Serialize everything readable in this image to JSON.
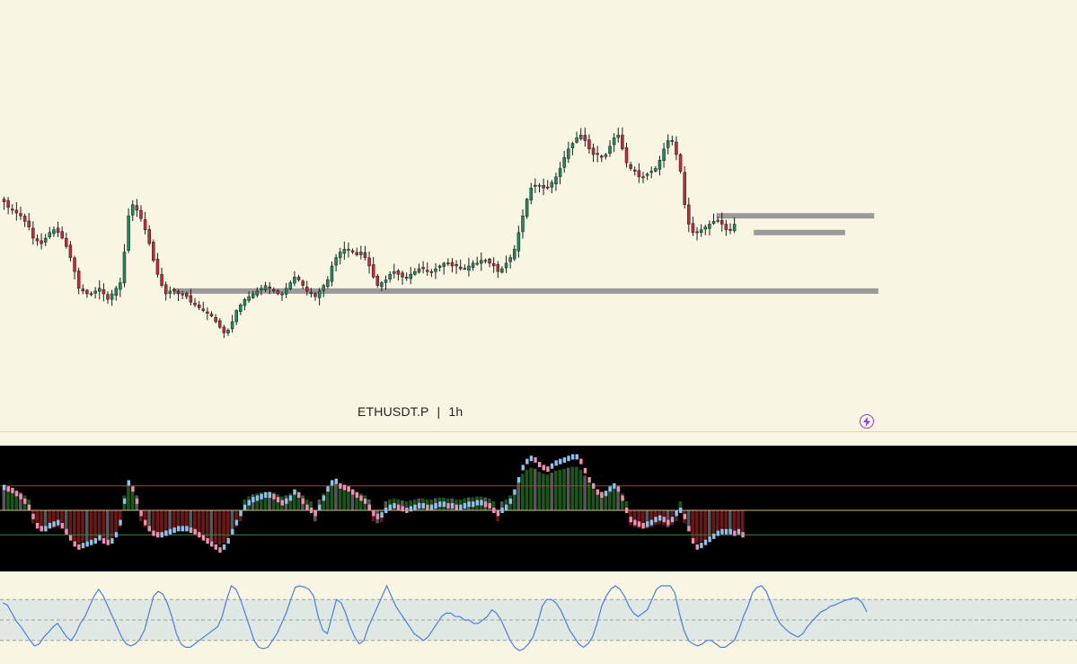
{
  "symbol": "ETHUSDT.P",
  "separator": "|",
  "timeframe": "1h",
  "icon": "lightning-bolt-icon",
  "colors": {
    "background": "#f9f5e3",
    "up_candle": "#1e8a5a",
    "down_candle": "#c4283c",
    "zone": "#9a9a9a",
    "osc_bg": "#000000",
    "osc_rising": "#8ec1ef",
    "osc_falling": "#f08fb0",
    "rsi_line": "#4b7fe0",
    "rsi_band": "#dfe8e2"
  },
  "chart_data": [
    {
      "type": "candlestick",
      "name": "price",
      "y_range": [
        0,
        100
      ],
      "close": [
        63,
        61,
        60,
        59,
        58,
        56,
        54,
        50,
        49,
        48,
        50,
        52,
        53,
        52,
        50,
        47,
        43,
        38,
        32,
        31,
        30,
        30,
        31,
        32,
        30,
        28,
        30,
        32,
        34,
        45,
        58,
        62,
        60,
        57,
        53,
        48,
        42,
        37,
        33,
        30,
        31,
        31,
        30,
        30,
        29,
        27,
        26,
        25,
        24,
        23,
        22,
        20,
        18,
        16,
        17,
        20,
        24,
        26,
        28,
        29,
        30,
        31,
        32,
        33,
        32,
        31,
        30,
        30,
        32,
        34,
        36,
        35,
        33,
        31,
        30,
        29,
        31,
        33,
        35,
        40,
        43,
        45,
        46,
        46,
        45,
        44,
        45,
        43,
        40,
        36,
        33,
        34,
        35,
        37,
        38,
        37,
        36,
        36,
        37,
        38,
        39,
        39,
        38,
        38,
        39,
        40,
        41,
        41,
        40,
        40,
        39,
        39,
        40,
        41,
        41,
        42,
        42,
        41,
        40,
        38,
        39,
        41,
        43,
        46,
        52,
        58,
        64,
        68,
        69,
        69,
        68,
        68,
        70,
        72,
        75,
        79,
        82,
        84,
        86,
        87,
        85,
        82,
        80,
        80,
        79,
        80,
        83,
        86,
        87,
        82,
        77,
        75,
        74,
        72,
        72,
        73,
        74,
        75,
        78,
        82,
        85,
        85,
        80,
        74,
        62,
        55,
        52,
        52,
        53,
        54,
        55,
        56,
        56,
        55,
        53,
        53,
        55
      ],
      "zones": [
        {
          "from_index": 41,
          "to_index": 211,
          "level": 31
        },
        {
          "from_index": 172,
          "to_index": 210,
          "level": 58
        },
        {
          "from_index": 181,
          "to_index": 203,
          "level": 52
        }
      ]
    },
    {
      "type": "oscillator",
      "name": "momentum",
      "levels": [
        0.8,
        0,
        -0.8
      ],
      "values": [
        0.75,
        0.7,
        0.65,
        0.55,
        0.45,
        0.3,
        0.1,
        -0.2,
        -0.5,
        -0.6,
        -0.6,
        -0.5,
        -0.45,
        -0.4,
        -0.5,
        -0.7,
        -0.9,
        -1.1,
        -1.2,
        -1.15,
        -1.1,
        -1.05,
        -1.0,
        -0.9,
        -1.0,
        -1.05,
        -1.0,
        -0.8,
        -0.4,
        0.3,
        0.9,
        0.7,
        0.3,
        -0.1,
        -0.4,
        -0.6,
        -0.75,
        -0.8,
        -0.8,
        -0.75,
        -0.7,
        -0.65,
        -0.6,
        -0.6,
        -0.6,
        -0.65,
        -0.7,
        -0.8,
        -0.9,
        -1.0,
        -1.1,
        -1.2,
        -1.3,
        -1.2,
        -1.0,
        -0.7,
        -0.4,
        -0.1,
        0.1,
        0.25,
        0.35,
        0.4,
        0.45,
        0.5,
        0.5,
        0.45,
        0.35,
        0.25,
        0.3,
        0.4,
        0.6,
        0.5,
        0.3,
        0.1,
        0.0,
        -0.1,
        0.1,
        0.4,
        0.7,
        0.9,
        0.95,
        0.8,
        0.75,
        0.7,
        0.6,
        0.5,
        0.4,
        0.3,
        0.1,
        -0.1,
        -0.2,
        -0.15,
        0.0,
        0.1,
        0.15,
        0.1,
        0.05,
        0.0,
        0.05,
        0.1,
        0.15,
        0.15,
        0.1,
        0.1,
        0.15,
        0.2,
        0.2,
        0.15,
        0.15,
        0.1,
        0.1,
        0.15,
        0.2,
        0.2,
        0.25,
        0.25,
        0.2,
        0.15,
        0.0,
        -0.1,
        0.0,
        0.1,
        0.3,
        0.6,
        1.0,
        1.4,
        1.6,
        1.7,
        1.65,
        1.5,
        1.4,
        1.35,
        1.45,
        1.55,
        1.6,
        1.65,
        1.7,
        1.75,
        1.75,
        1.6,
        1.3,
        1.0,
        0.8,
        0.6,
        0.5,
        0.55,
        0.7,
        0.8,
        0.7,
        0.4,
        0.0,
        -0.3,
        -0.4,
        -0.45,
        -0.5,
        -0.45,
        -0.4,
        -0.3,
        -0.25,
        -0.3,
        -0.4,
        -0.3,
        -0.1,
        0.0,
        -0.2,
        -0.6,
        -1.0,
        -1.2,
        -1.15,
        -1.05,
        -0.95,
        -0.85,
        -0.75,
        -0.7,
        -0.7,
        -0.7,
        -0.75,
        -0.7,
        -0.8
      ]
    },
    {
      "type": "line",
      "name": "rsi",
      "band": [
        20,
        80
      ],
      "levels": [
        20,
        50,
        80
      ],
      "values": [
        75,
        72,
        60,
        48,
        40,
        30,
        20,
        12,
        15,
        25,
        32,
        40,
        45,
        35,
        25,
        20,
        30,
        45,
        55,
        70,
        85,
        95,
        85,
        70,
        55,
        40,
        25,
        15,
        12,
        15,
        22,
        35,
        60,
        85,
        92,
        88,
        75,
        55,
        30,
        15,
        10,
        10,
        15,
        20,
        25,
        30,
        35,
        40,
        55,
        80,
        100,
        95,
        80,
        60,
        40,
        20,
        10,
        8,
        10,
        20,
        30,
        45,
        60,
        80,
        98,
        100,
        98,
        95,
        85,
        55,
        35,
        30,
        55,
        80,
        75,
        60,
        40,
        25,
        15,
        20,
        40,
        55,
        70,
        85,
        100,
        85,
        70,
        60,
        50,
        40,
        30,
        25,
        20,
        25,
        35,
        45,
        55,
        60,
        60,
        55,
        55,
        50,
        50,
        45,
        45,
        50,
        55,
        65,
        60,
        50,
        35,
        20,
        10,
        5,
        8,
        15,
        25,
        45,
        70,
        80,
        80,
        75,
        65,
        50,
        35,
        25,
        15,
        10,
        15,
        25,
        45,
        70,
        85,
        95,
        100,
        95,
        85,
        70,
        60,
        55,
        60,
        65,
        80,
        95,
        100,
        100,
        100,
        90,
        60,
        35,
        20,
        15,
        12,
        15,
        20,
        20,
        15,
        10,
        10,
        15,
        20,
        35,
        55,
        70,
        90,
        98,
        100,
        92,
        75,
        58,
        45,
        38,
        32,
        28,
        25,
        30,
        40,
        48,
        55,
        62,
        65,
        70,
        72,
        75,
        78,
        80,
        82,
        82,
        75,
        62
      ]
    }
  ]
}
